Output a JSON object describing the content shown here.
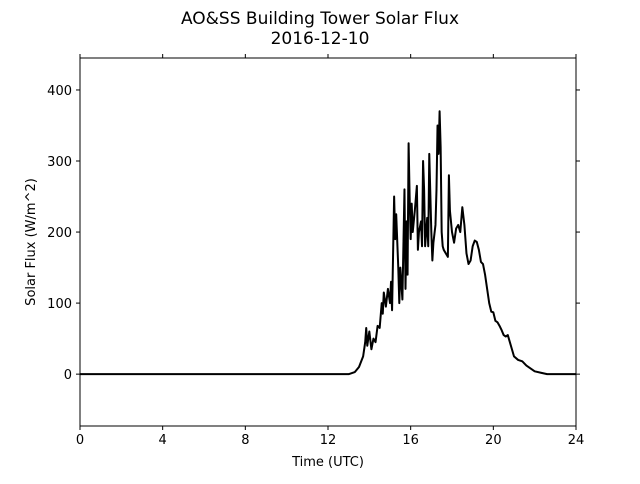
{
  "chart_data": {
    "type": "line",
    "title": "AO&SS Building Tower Solar Flux",
    "subtitle": "2016-12-10",
    "x_label": "Time (UTC)",
    "y_label": "Solar Flux (W/m^2)",
    "x": [
      0,
      12.6,
      13.0,
      13.3,
      13.5,
      13.7,
      13.8,
      13.85,
      13.9,
      14.0,
      14.1,
      14.2,
      14.3,
      14.4,
      14.5,
      14.6,
      14.65,
      14.7,
      14.8,
      14.9,
      15.0,
      15.05,
      15.1,
      15.2,
      15.25,
      15.3,
      15.4,
      15.45,
      15.5,
      15.6,
      15.7,
      15.75,
      15.8,
      15.85,
      15.9,
      15.95,
      16.0,
      16.05,
      16.1,
      16.2,
      16.3,
      16.35,
      16.4,
      16.5,
      16.55,
      16.6,
      16.65,
      16.7,
      16.8,
      16.85,
      16.9,
      17.0,
      17.05,
      17.1,
      17.2,
      17.25,
      17.3,
      17.35,
      17.4,
      17.45,
      17.5,
      17.55,
      17.6,
      17.7,
      17.8,
      17.85,
      17.9,
      18.0,
      18.1,
      18.2,
      18.3,
      18.4,
      18.5,
      18.6,
      18.7,
      18.8,
      18.9,
      19.0,
      19.1,
      19.2,
      19.3,
      19.4,
      19.5,
      19.6,
      19.7,
      19.8,
      19.9,
      20.0,
      20.1,
      20.2,
      20.3,
      20.4,
      20.5,
      20.6,
      20.7,
      20.8,
      20.9,
      21.0,
      21.2,
      21.4,
      21.6,
      21.8,
      22.0,
      22.3,
      22.6,
      24
    ],
    "series": [
      {
        "color": "#000000",
        "values": [
          0,
          0,
          0,
          3,
          10,
          25,
          45,
          65,
          40,
          60,
          35,
          50,
          45,
          68,
          65,
          100,
          85,
          115,
          95,
          120,
          100,
          130,
          90,
          250,
          190,
          225,
          150,
          100,
          150,
          105,
          260,
          120,
          215,
          140,
          325,
          250,
          190,
          240,
          200,
          230,
          265,
          175,
          200,
          215,
          180,
          300,
          260,
          180,
          220,
          180,
          310,
          200,
          160,
          185,
          210,
          260,
          350,
          310,
          370,
          320,
          200,
          180,
          175,
          170,
          165,
          280,
          230,
          200,
          185,
          205,
          210,
          200,
          235,
          210,
          170,
          155,
          160,
          180,
          188,
          186,
          175,
          158,
          155,
          140,
          120,
          100,
          88,
          87,
          75,
          73,
          68,
          62,
          55,
          53,
          55,
          45,
          35,
          25,
          20,
          18,
          12,
          8,
          4,
          2,
          0,
          0
        ]
      }
    ],
    "xlim": [
      0,
      24
    ],
    "xticks": [
      0,
      4,
      8,
      12,
      16,
      20,
      24
    ],
    "ylim": [
      -73,
      445
    ],
    "yticks": [
      0,
      100,
      200,
      300,
      400
    ]
  }
}
